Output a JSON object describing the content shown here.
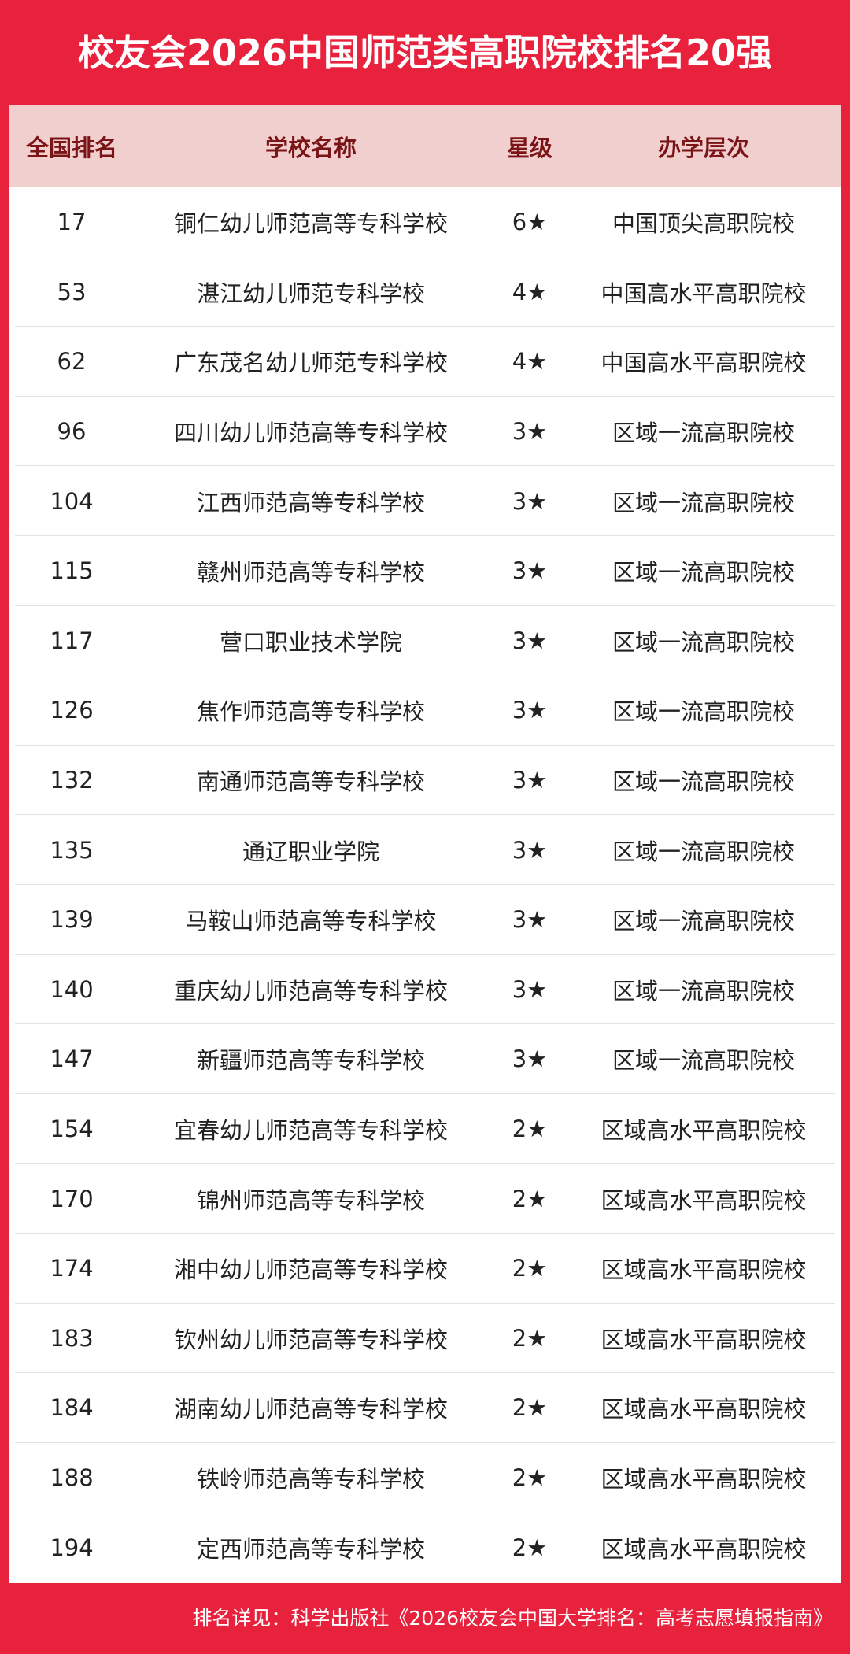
{
  "title": "校友会2026中国师范类高职院校排名20强",
  "table": {
    "header": [
      "全国排名",
      "学校名称",
      "星级",
      "办学层次"
    ],
    "rows": [
      [
        "17",
        "铜仁幼儿师范高等专科学校",
        "6★",
        "中国顶尖高职院校"
      ],
      [
        "53",
        "湛江幼儿师范专科学校",
        "4★",
        "中国高水平高职院校"
      ],
      [
        "62",
        "广东茂名幼儿师范专科学校",
        "4★",
        "中国高水平高职院校"
      ],
      [
        "96",
        "四川幼儿师范高等专科学校",
        "3★",
        "区域一流高职院校"
      ],
      [
        "104",
        "江西师范高等专科学校",
        "3★",
        "区域一流高职院校"
      ],
      [
        "115",
        "赣州师范高等专科学校",
        "3★",
        "区域一流高职院校"
      ],
      [
        "117",
        "营口职业技术学院",
        "3★",
        "区域一流高职院校"
      ],
      [
        "126",
        "焦作师范高等专科学校",
        "3★",
        "区域一流高职院校"
      ],
      [
        "132",
        "南通师范高等专科学校",
        "3★",
        "区域一流高职院校"
      ],
      [
        "135",
        "通辽职业学院",
        "3★",
        "区域一流高职院校"
      ],
      [
        "139",
        "马鞍山师范高等专科学校",
        "3★",
        "区域一流高职院校"
      ],
      [
        "140",
        "重庆幼儿师范高等专科学校",
        "3★",
        "区域一流高职院校"
      ],
      [
        "147",
        "新疆师范高等专科学校",
        "3★",
        "区域一流高职院校"
      ],
      [
        "154",
        "宜春幼儿师范高等专科学校",
        "2★",
        "区域高水平高职院校"
      ],
      [
        "170",
        "锦州师范高等专科学校",
        "2★",
        "区域高水平高职院校"
      ],
      [
        "174",
        "湘中幼儿师范高等专科学校",
        "2★",
        "区域高水平高职院校"
      ],
      [
        "183",
        "钦州幼儿师范高等专科学校",
        "2★",
        "区域高水平高职院校"
      ],
      [
        "184",
        "湖南幼儿师范高等专科学校",
        "2★",
        "区域高水平高职院校"
      ],
      [
        "188",
        "铁岭师范高等专科学校",
        "2★",
        "区域高水平高职院校"
      ],
      [
        "194",
        "定西师范高等专科学校",
        "2★",
        "区域高水平高职院校"
      ]
    ]
  },
  "footer": "排名详见：科学出版社《2026校友会中国大学排名：高考志愿填报指南》"
}
